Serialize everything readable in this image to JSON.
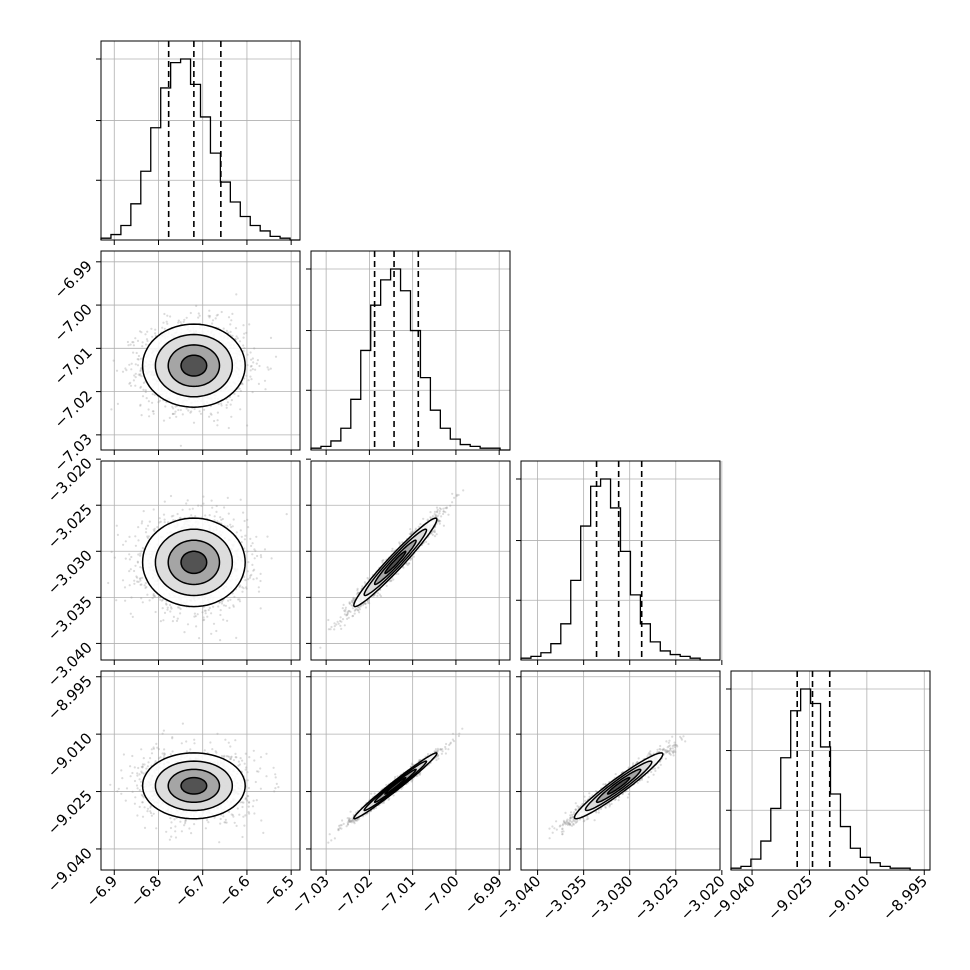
{
  "chart_data": {
    "type": "corner",
    "title": "",
    "parameters": [
      {
        "mean": -6.72,
        "sd": 0.058,
        "range": [
          -6.93,
          -6.48
        ],
        "quantiles": [
          -6.777,
          -6.72,
          -6.659
        ],
        "tick_values": [
          -6.9,
          -6.8,
          -6.7,
          -6.6,
          -6.5
        ],
        "tick_labels": [
          "−6.9",
          "−6.8",
          "−6.7",
          "−6.6",
          "−6.5"
        ],
        "hist_counts": [
          1,
          3,
          8,
          20,
          38,
          62,
          84,
          98,
          100,
          86,
          68,
          48,
          32,
          21,
          13,
          8,
          5,
          2,
          1,
          0
        ]
      },
      {
        "mean": -7.014,
        "sd": 0.0048,
        "range": [
          -7.0335,
          -6.9875
        ],
        "quantiles": [
          -7.0188,
          -7.0143,
          -7.0087
        ],
        "tick_values": [
          -7.03,
          -7.02,
          -7.01,
          -7.0,
          -6.99
        ],
        "tick_labels": [
          "−7.03",
          "−7.02",
          "−7.01",
          "−7.00",
          "−6.99"
        ],
        "hist_counts": [
          1,
          2,
          5,
          12,
          28,
          55,
          80,
          94,
          100,
          88,
          66,
          40,
          22,
          12,
          6,
          3,
          2,
          1,
          1,
          0
        ]
      },
      {
        "mean": -3.0312,
        "sd": 0.0024,
        "range": [
          -3.0418,
          -3.0202
        ],
        "quantiles": [
          -3.0336,
          -3.0312,
          -3.0287
        ],
        "tick_values": [
          -3.04,
          -3.035,
          -3.03,
          -3.025,
          -3.02
        ],
        "tick_labels": [
          "−3.040",
          "−3.035",
          "−3.030",
          "−3.025",
          "−3.020"
        ],
        "hist_counts": [
          1,
          2,
          4,
          9,
          20,
          44,
          74,
          96,
          100,
          84,
          60,
          36,
          20,
          10,
          5,
          3,
          2,
          1,
          0,
          0
        ]
      },
      {
        "mean": -9.0235,
        "sd": 0.0043,
        "range": [
          -9.0455,
          -8.9935
        ],
        "quantiles": [
          -9.0282,
          -9.0242,
          -9.0197
        ],
        "tick_values": [
          -9.04,
          -9.025,
          -9.01,
          -8.995
        ],
        "tick_labels": [
          "−9.040",
          "−9.025",
          "−9.010",
          "−8.995"
        ],
        "hist_counts": [
          1,
          2,
          6,
          16,
          34,
          62,
          88,
          100,
          92,
          68,
          42,
          24,
          12,
          7,
          4,
          2,
          1,
          1,
          0,
          0
        ]
      }
    ],
    "correlations": {
      "1-0": 0.0,
      "2-0": 0.0,
      "3-0": 0.0,
      "2-1": 0.97,
      "3-1": 0.985,
      "3-2": 0.96
    },
    "contour_levels_sigma": [
      0.5,
      1.0,
      1.5,
      2.0
    ],
    "grid": true,
    "quantile_line_style": "dashed",
    "colors": {
      "line": "#000000",
      "grid": "#b0b0b0",
      "points": "#999999",
      "density_fill": "#555555"
    }
  }
}
